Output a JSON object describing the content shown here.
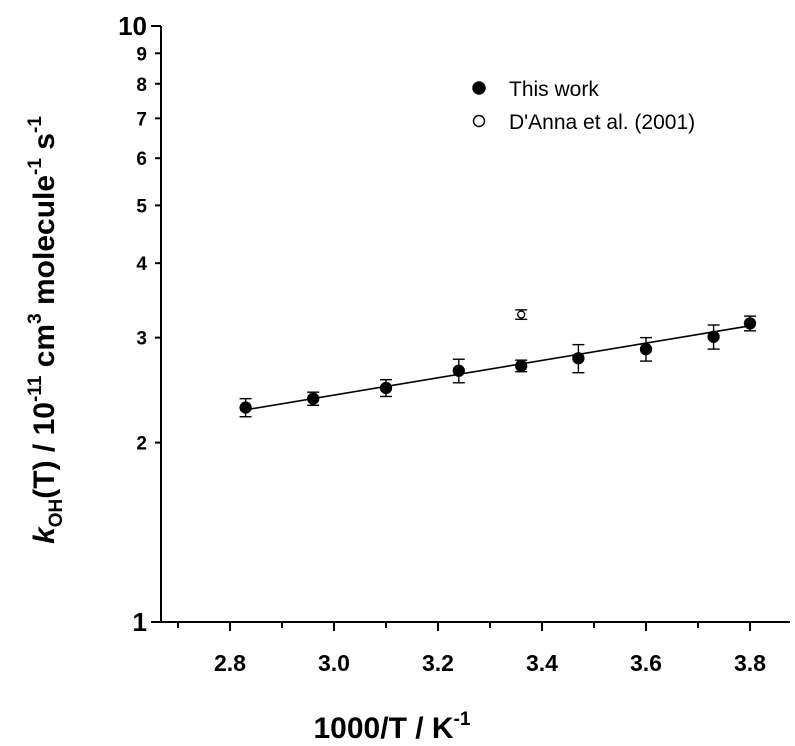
{
  "chart_data": {
    "type": "scatter",
    "xlabel": "1000/T / K",
    "xlabel_sup": "-1",
    "ylabel": {
      "k": "k",
      "k_sub": "OH",
      "mid": "(T) / 10",
      "exp1": "-11",
      "cm": " cm",
      "exp2": "3",
      "molecule": " molecule",
      "exp3": "-1",
      "s": " s",
      "exp4": "-1"
    },
    "xlim": [
      2.7,
      3.9
    ],
    "ylim": [
      1,
      10
    ],
    "y_scale": "log",
    "x_ticks": [
      {
        "value": 2.8,
        "label": "2.8"
      },
      {
        "value": 3.0,
        "label": "3.0"
      },
      {
        "value": 3.2,
        "label": "3.2"
      },
      {
        "value": 3.4,
        "label": "3.4"
      },
      {
        "value": 3.6,
        "label": "3.6"
      },
      {
        "value": 3.8,
        "label": "3.8"
      }
    ],
    "y_ticks": [
      {
        "value": 1,
        "label": "1",
        "major": true
      },
      {
        "value": 2,
        "label": "2"
      },
      {
        "value": 3,
        "label": "3"
      },
      {
        "value": 4,
        "label": "4"
      },
      {
        "value": 5,
        "label": "5"
      },
      {
        "value": 6,
        "label": "6"
      },
      {
        "value": 7,
        "label": "7"
      },
      {
        "value": 8,
        "label": "8"
      },
      {
        "value": 9,
        "label": "9"
      },
      {
        "value": 10,
        "label": "10",
        "major": true
      }
    ],
    "legend_position": "top-right",
    "grid": false,
    "series": [
      {
        "name": "This work",
        "marker": "filled-circle",
        "points": [
          {
            "x": 2.83,
            "y": 2.29,
            "err": 0.08
          },
          {
            "x": 2.96,
            "y": 2.37,
            "err": 0.06
          },
          {
            "x": 3.1,
            "y": 2.47,
            "err": 0.08
          },
          {
            "x": 3.24,
            "y": 2.64,
            "err": 0.12
          },
          {
            "x": 3.36,
            "y": 2.69,
            "err": 0.06
          },
          {
            "x": 3.47,
            "y": 2.77,
            "err": 0.15
          },
          {
            "x": 3.6,
            "y": 2.87,
            "err": 0.13
          },
          {
            "x": 3.73,
            "y": 3.01,
            "err": 0.14
          },
          {
            "x": 3.8,
            "y": 3.17,
            "err": 0.09
          }
        ]
      },
      {
        "name": "D'Anna et al. (2001)",
        "marker": "open-circle",
        "points": [
          {
            "x": 3.36,
            "y": 3.28,
            "err": 0.06
          }
        ]
      }
    ],
    "fit_line": {
      "x": [
        2.83,
        3.8
      ],
      "y": [
        2.27,
        3.14
      ]
    }
  }
}
